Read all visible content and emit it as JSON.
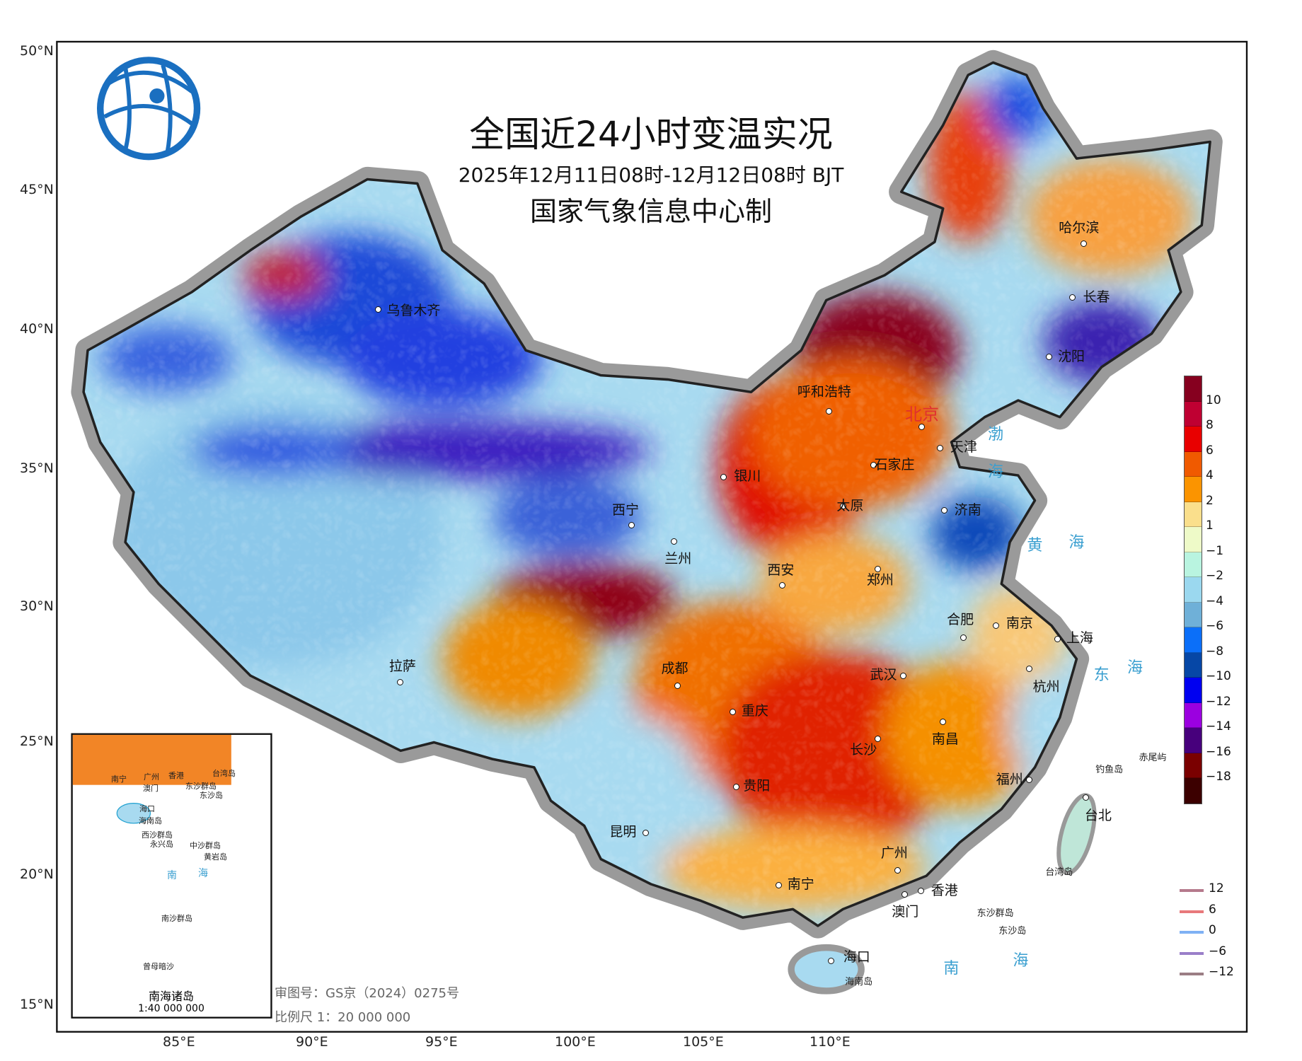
{
  "title": "全国近24小时变温实况",
  "subtitle": "2025年12月11日08时-12月12日08时 BJT",
  "producer": "国家气象信息中心制",
  "logo": "CMA-information-center-globe-logo",
  "lat_ticks": [
    "50°N",
    "45°N",
    "40°N",
    "35°N",
    "30°N",
    "25°N",
    "20°N",
    "15°N"
  ],
  "lon_ticks": [
    "85°E",
    "90°E",
    "95°E",
    "100°E",
    "105°E",
    "110°E"
  ],
  "colorbar": {
    "colors": [
      "#86001f",
      "#bf0032",
      "#e80000",
      "#f05a00",
      "#fb9400",
      "#fadf8c",
      "#eefac8",
      "#b9f4e0",
      "#9bd8ef",
      "#6fb0d8",
      "#0b6ff9",
      "#0647a6",
      "#0000f0",
      "#9b00e0",
      "#47007c",
      "#7a0000",
      "#3c0000"
    ],
    "labels": [
      "10",
      "8",
      "6",
      "4",
      "2",
      "1",
      "−1",
      "−2",
      "−4",
      "−6",
      "−8",
      "−10",
      "−12",
      "−14",
      "−16",
      "−18"
    ]
  },
  "line_legend": [
    {
      "label": "12",
      "color": "#b57a8c"
    },
    {
      "label": "6",
      "color": "#e8797b"
    },
    {
      "label": "0",
      "color": "#7fb1f4"
    },
    {
      "label": "−6",
      "color": "#9a7fc9"
    },
    {
      "label": "−12",
      "color": "#9b7e84"
    }
  ],
  "cities": [
    "乌鲁木齐",
    "呼和浩特",
    "北京",
    "天津",
    "石家庄",
    "太原",
    "沈阳",
    "长春",
    "哈尔滨",
    "银川",
    "济南",
    "西宁",
    "兰州",
    "西安",
    "郑州",
    "合肥",
    "南京",
    "上海",
    "拉萨",
    "成都",
    "重庆",
    "武汉",
    "杭州",
    "南昌",
    "长沙",
    "贵阳",
    "福州",
    "台北",
    "昆明",
    "广州",
    "南宁",
    "香港",
    "澳门",
    "海口"
  ],
  "seas": [
    "渤",
    "海",
    "黄",
    "海",
    "东",
    "海",
    "南",
    "海"
  ],
  "islands": [
    "钓鱼岛",
    "赤尾屿",
    "台湾岛",
    "东沙群岛",
    "东沙岛",
    "海南岛"
  ],
  "inset": {
    "title": "南海诸岛",
    "scale": "1:40 000 000",
    "labels": [
      "南宁",
      "广州",
      "香港",
      "澳门",
      "台湾岛",
      "东沙群岛",
      "东沙岛",
      "海口",
      "海南岛",
      "西沙群岛",
      "永兴岛",
      "中沙群岛",
      "黄岩岛",
      "南",
      "海",
      "南沙群岛",
      "曾母暗沙"
    ]
  },
  "footer": {
    "approval": "审图号：GS京（2024）0275号",
    "scale": "比例尺 1：20 000 000"
  }
}
